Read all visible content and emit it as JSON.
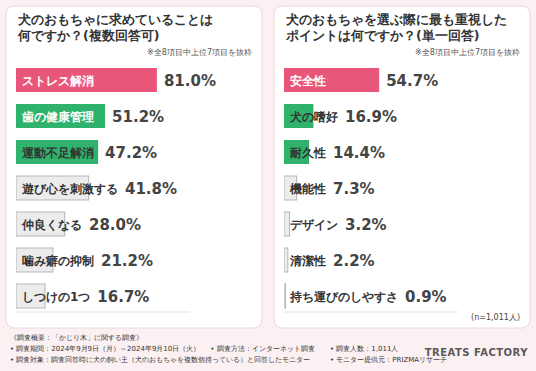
{
  "chart_data": [
    {
      "type": "bar",
      "orientation": "horizontal",
      "title": "犬のおもちゃに求めていることは何ですか？(複数回答可)",
      "subtitle": "※全8項目中上位7項目を抜粋",
      "categories": [
        "ストレス解消",
        "歯の健康管理",
        "運動不足解消",
        "遊び心を刺激する",
        "仲良くなる",
        "噛み癖の抑制",
        "しつけの1つ"
      ],
      "values": [
        81.0,
        51.2,
        47.2,
        41.8,
        28.0,
        21.2,
        16.7
      ],
      "value_labels": [
        "81.0%",
        "51.2%",
        "47.2%",
        "41.8%",
        "28.0%",
        "21.2%",
        "16.7%"
      ],
      "colors": [
        "#e8577a",
        "#2fb36c",
        "#2fb36c",
        "#ececec",
        "#ececec",
        "#ececec",
        "#ececec"
      ],
      "xlim": [
        0,
        100
      ],
      "data_labels": true,
      "tick_labels": false,
      "grid": false
    },
    {
      "type": "bar",
      "orientation": "horizontal",
      "title": "犬のおもちゃを選ぶ際に最も重視したポイントは何ですか？(単一回答)",
      "subtitle": "※全8項目中上位7項目を抜粋",
      "annotations": [
        "(n=1,011人)"
      ],
      "categories": [
        "安全性",
        "犬の嗜好",
        "耐久性",
        "機能性",
        "デザイン",
        "清潔性",
        "持ち運びのしやすさ"
      ],
      "values": [
        54.7,
        16.9,
        14.4,
        7.3,
        3.2,
        2.2,
        0.9
      ],
      "value_labels": [
        "54.7%",
        "16.9%",
        "14.4%",
        "7.3%",
        "3.2%",
        "2.2%",
        "0.9%"
      ],
      "colors": [
        "#e8577a",
        "#2fb36c",
        "#2fb36c",
        "#ececec",
        "#ececec",
        "#ececec",
        "#ececec"
      ],
      "xlim": [
        0,
        100
      ],
      "data_labels": true,
      "tick_labels": false,
      "grid": false
    }
  ],
  "source": {
    "heading": "《調査概要：「かじり木」に関する調査》",
    "rows": [
      [
        "• 調査期間：2024年9月9日（月）～2024年9月10日（火）",
        "• 調査方法：インターネット調査",
        "• 調査人数：1,011人"
      ],
      [
        "• 調査対象：調査回答時に犬の飼い主（犬のおもちゃを複数個持っている）と回答したモニター",
        "• モニター提供元：PRIZMAリサーチ"
      ]
    ],
    "logo": "TREATS FACTORY"
  }
}
